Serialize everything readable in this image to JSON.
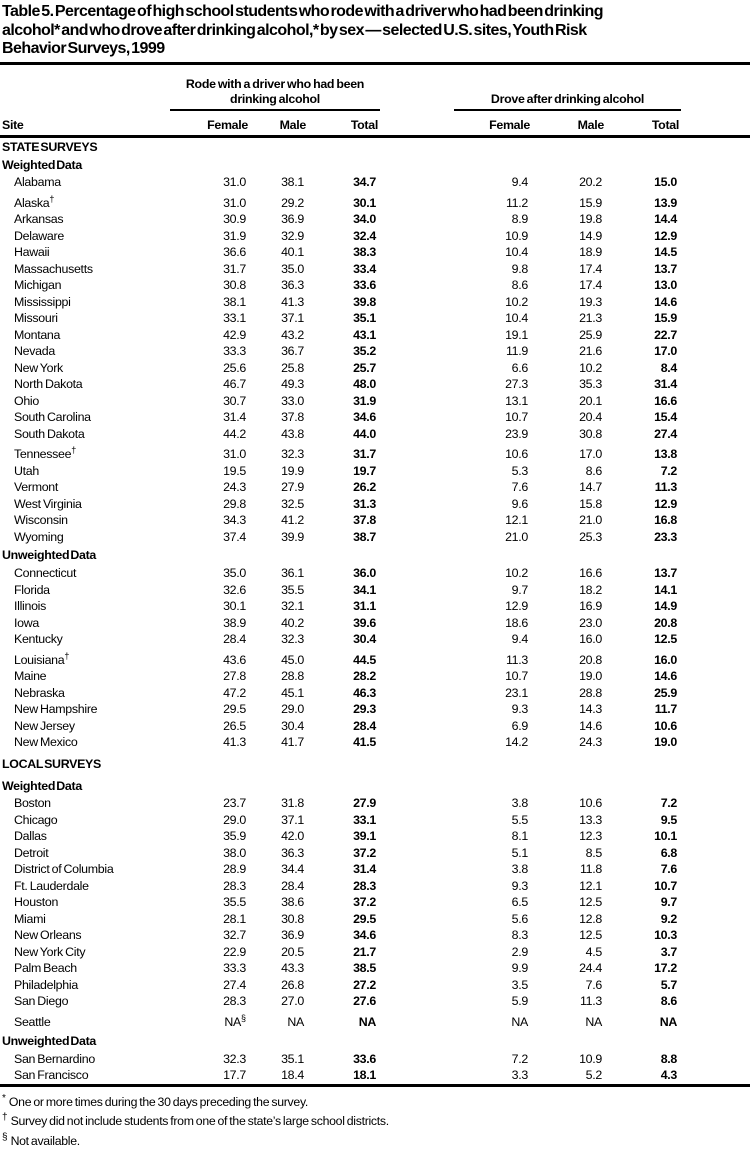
{
  "title": {
    "text": "Table 5. Percentage of high school students who rode with a driver who had been drinking alcohol* and who drove after drinking alcohol,* by sex — selected U.S. sites, Youth Risk Behavior Surveys, 1999",
    "lines": [
      "Table 5. Percentage of high school students who rode with a driver who had been drinking",
      "alcohol* and who drove after drinking alcohol,* by sex — selected U.S. sites, Youth Risk",
      "Behavior Surveys, 1999"
    ]
  },
  "header": {
    "site_label": "Site",
    "group1_line1": "Rode with a driver who had been",
    "group1_line2": "drinking alcohol",
    "group2": "Drove after drinking alcohol",
    "cols": [
      "Female",
      "Male",
      "Total",
      "Female",
      "Male",
      "Total"
    ]
  },
  "table": {
    "rows": [
      {
        "k": "s",
        "label": "STATE SURVEYS"
      },
      {
        "k": "ss",
        "label": "Weighted Data"
      },
      {
        "k": "d",
        "site": "Alabama",
        "v": [
          "31.0",
          "38.1",
          "34.7",
          "9.4",
          "20.2",
          "15.0"
        ]
      },
      {
        "k": "d",
        "site": "Alaska",
        "sup": "†",
        "v": [
          "31.0",
          "29.2",
          "30.1",
          "11.2",
          "15.9",
          "13.9"
        ]
      },
      {
        "k": "d",
        "site": "Arkansas",
        "v": [
          "30.9",
          "36.9",
          "34.0",
          "8.9",
          "19.8",
          "14.4"
        ]
      },
      {
        "k": "d",
        "site": "Delaware",
        "v": [
          "31.9",
          "32.9",
          "32.4",
          "10.9",
          "14.9",
          "12.9"
        ]
      },
      {
        "k": "d",
        "site": "Hawaii",
        "v": [
          "36.6",
          "40.1",
          "38.3",
          "10.4",
          "18.9",
          "14.5"
        ]
      },
      {
        "k": "d",
        "site": "Massachusetts",
        "v": [
          "31.7",
          "35.0",
          "33.4",
          "9.8",
          "17.4",
          "13.7"
        ]
      },
      {
        "k": "d",
        "site": "Michigan",
        "v": [
          "30.8",
          "36.3",
          "33.6",
          "8.6",
          "17.4",
          "13.0"
        ]
      },
      {
        "k": "d",
        "site": "Mississippi",
        "v": [
          "38.1",
          "41.3",
          "39.8",
          "10.2",
          "19.3",
          "14.6"
        ]
      },
      {
        "k": "d",
        "site": "Missouri",
        "v": [
          "33.1",
          "37.1",
          "35.1",
          "10.4",
          "21.3",
          "15.9"
        ]
      },
      {
        "k": "d",
        "site": "Montana",
        "v": [
          "42.9",
          "43.2",
          "43.1",
          "19.1",
          "25.9",
          "22.7"
        ]
      },
      {
        "k": "d",
        "site": "Nevada",
        "v": [
          "33.3",
          "36.7",
          "35.2",
          "11.9",
          "21.6",
          "17.0"
        ]
      },
      {
        "k": "d",
        "site": "New York",
        "v": [
          "25.6",
          "25.8",
          "25.7",
          "6.6",
          "10.2",
          "8.4"
        ]
      },
      {
        "k": "d",
        "site": "North Dakota",
        "v": [
          "46.7",
          "49.3",
          "48.0",
          "27.3",
          "35.3",
          "31.4"
        ]
      },
      {
        "k": "d",
        "site": "Ohio",
        "v": [
          "30.7",
          "33.0",
          "31.9",
          "13.1",
          "20.1",
          "16.6"
        ]
      },
      {
        "k": "d",
        "site": "South Carolina",
        "v": [
          "31.4",
          "37.8",
          "34.6",
          "10.7",
          "20.4",
          "15.4"
        ]
      },
      {
        "k": "d",
        "site": "South Dakota",
        "v": [
          "44.2",
          "43.8",
          "44.0",
          "23.9",
          "30.8",
          "27.4"
        ]
      },
      {
        "k": "d",
        "site": "Tennessee",
        "sup": "†",
        "v": [
          "31.0",
          "32.3",
          "31.7",
          "10.6",
          "17.0",
          "13.8"
        ]
      },
      {
        "k": "d",
        "site": "Utah",
        "v": [
          "19.5",
          "19.9",
          "19.7",
          "5.3",
          "8.6",
          "7.2"
        ]
      },
      {
        "k": "d",
        "site": "Vermont",
        "v": [
          "24.3",
          "27.9",
          "26.2",
          "7.6",
          "14.7",
          "11.3"
        ]
      },
      {
        "k": "d",
        "site": "West Virginia",
        "v": [
          "29.8",
          "32.5",
          "31.3",
          "9.6",
          "15.8",
          "12.9"
        ]
      },
      {
        "k": "d",
        "site": "Wisconsin",
        "v": [
          "34.3",
          "41.2",
          "37.8",
          "12.1",
          "21.0",
          "16.8"
        ]
      },
      {
        "k": "d",
        "site": "Wyoming",
        "v": [
          "37.4",
          "39.9",
          "38.7",
          "21.0",
          "25.3",
          "23.3"
        ]
      },
      {
        "k": "ss",
        "label": "Unweighted Data",
        "extra": "sm"
      },
      {
        "k": "d",
        "site": "Connecticut",
        "v": [
          "35.0",
          "36.1",
          "36.0",
          "10.2",
          "16.6",
          "13.7"
        ]
      },
      {
        "k": "d",
        "site": "Florida",
        "v": [
          "32.6",
          "35.5",
          "34.1",
          "9.7",
          "18.2",
          "14.1"
        ]
      },
      {
        "k": "d",
        "site": "Illinois",
        "v": [
          "30.1",
          "32.1",
          "31.1",
          "12.9",
          "16.9",
          "14.9"
        ]
      },
      {
        "k": "d",
        "site": "Iowa",
        "v": [
          "38.9",
          "40.2",
          "39.6",
          "18.6",
          "23.0",
          "20.8"
        ]
      },
      {
        "k": "d",
        "site": "Kentucky",
        "v": [
          "28.4",
          "32.3",
          "30.4",
          "9.4",
          "16.0",
          "12.5"
        ]
      },
      {
        "k": "d",
        "site": "Louisiana",
        "sup": "†",
        "v": [
          "43.6",
          "45.0",
          "44.5",
          "11.3",
          "20.8",
          "16.0"
        ]
      },
      {
        "k": "d",
        "site": "Maine",
        "v": [
          "27.8",
          "28.8",
          "28.2",
          "10.7",
          "19.0",
          "14.6"
        ]
      },
      {
        "k": "d",
        "site": "Nebraska",
        "v": [
          "47.2",
          "45.1",
          "46.3",
          "23.1",
          "28.8",
          "25.9"
        ]
      },
      {
        "k": "d",
        "site": "New Hampshire",
        "v": [
          "29.5",
          "29.0",
          "29.3",
          "9.3",
          "14.3",
          "11.7"
        ]
      },
      {
        "k": "d",
        "site": "New Jersey",
        "v": [
          "26.5",
          "30.4",
          "28.4",
          "6.9",
          "14.6",
          "10.6"
        ]
      },
      {
        "k": "d",
        "site": "New Mexico",
        "v": [
          "41.3",
          "41.7",
          "41.5",
          "14.2",
          "24.3",
          "19.0"
        ]
      },
      {
        "k": "s",
        "label": "LOCAL SURVEYS",
        "extra": "lg"
      },
      {
        "k": "ss",
        "label": "Weighted Data"
      },
      {
        "k": "d",
        "site": "Boston",
        "v": [
          "23.7",
          "31.8",
          "27.9",
          "3.8",
          "10.6",
          "7.2"
        ]
      },
      {
        "k": "d",
        "site": "Chicago",
        "v": [
          "29.0",
          "37.1",
          "33.1",
          "5.5",
          "13.3",
          "9.5"
        ]
      },
      {
        "k": "d",
        "site": "Dallas",
        "v": [
          "35.9",
          "42.0",
          "39.1",
          "8.1",
          "12.3",
          "10.1"
        ]
      },
      {
        "k": "d",
        "site": "Detroit",
        "v": [
          "38.0",
          "36.3",
          "37.2",
          "5.1",
          "8.5",
          "6.8"
        ]
      },
      {
        "k": "d",
        "site": "District of Columbia",
        "v": [
          "28.9",
          "34.4",
          "31.4",
          "3.8",
          "11.8",
          "7.6"
        ]
      },
      {
        "k": "d",
        "site": "Ft. Lauderdale",
        "v": [
          "28.3",
          "28.4",
          "28.3",
          "9.3",
          "12.1",
          "10.7"
        ]
      },
      {
        "k": "d",
        "site": "Houston",
        "v": [
          "35.5",
          "38.6",
          "37.2",
          "6.5",
          "12.5",
          "9.7"
        ]
      },
      {
        "k": "d",
        "site": "Miami",
        "v": [
          "28.1",
          "30.8",
          "29.5",
          "5.6",
          "12.8",
          "9.2"
        ]
      },
      {
        "k": "d",
        "site": "New Orleans",
        "v": [
          "32.7",
          "36.9",
          "34.6",
          "8.3",
          "12.5",
          "10.3"
        ]
      },
      {
        "k": "d",
        "site": "New York City",
        "v": [
          "22.9",
          "20.5",
          "21.7",
          "2.9",
          "4.5",
          "3.7"
        ]
      },
      {
        "k": "d",
        "site": "Palm Beach",
        "v": [
          "33.3",
          "43.3",
          "38.5",
          "9.9",
          "24.4",
          "17.2"
        ]
      },
      {
        "k": "d",
        "site": "Philadelphia",
        "v": [
          "27.4",
          "26.8",
          "27.2",
          "3.5",
          "7.6",
          "5.7"
        ]
      },
      {
        "k": "d",
        "site": "San Diego",
        "v": [
          "28.3",
          "27.0",
          "27.6",
          "5.9",
          "11.3",
          "8.6"
        ]
      },
      {
        "k": "d",
        "site": "Seattle",
        "v": [
          "NA§",
          "NA",
          "NA",
          "NA",
          "NA",
          "NA"
        ]
      },
      {
        "k": "ss",
        "label": "Unweighted Data",
        "extra": "sm"
      },
      {
        "k": "d",
        "site": "San Bernardino",
        "v": [
          "32.3",
          "35.1",
          "33.6",
          "7.2",
          "10.9",
          "8.8"
        ]
      },
      {
        "k": "d",
        "site": "San Francisco",
        "v": [
          "17.7",
          "18.4",
          "18.1",
          "3.3",
          "5.2",
          "4.3"
        ]
      }
    ]
  },
  "footnotes": [
    {
      "marker": "*",
      "text": "One or more times during the 30 days preceding the survey."
    },
    {
      "marker": "†",
      "text": "Survey did not include students from one of the state’s large school districts."
    },
    {
      "marker": "§",
      "text": "Not available."
    }
  ]
}
